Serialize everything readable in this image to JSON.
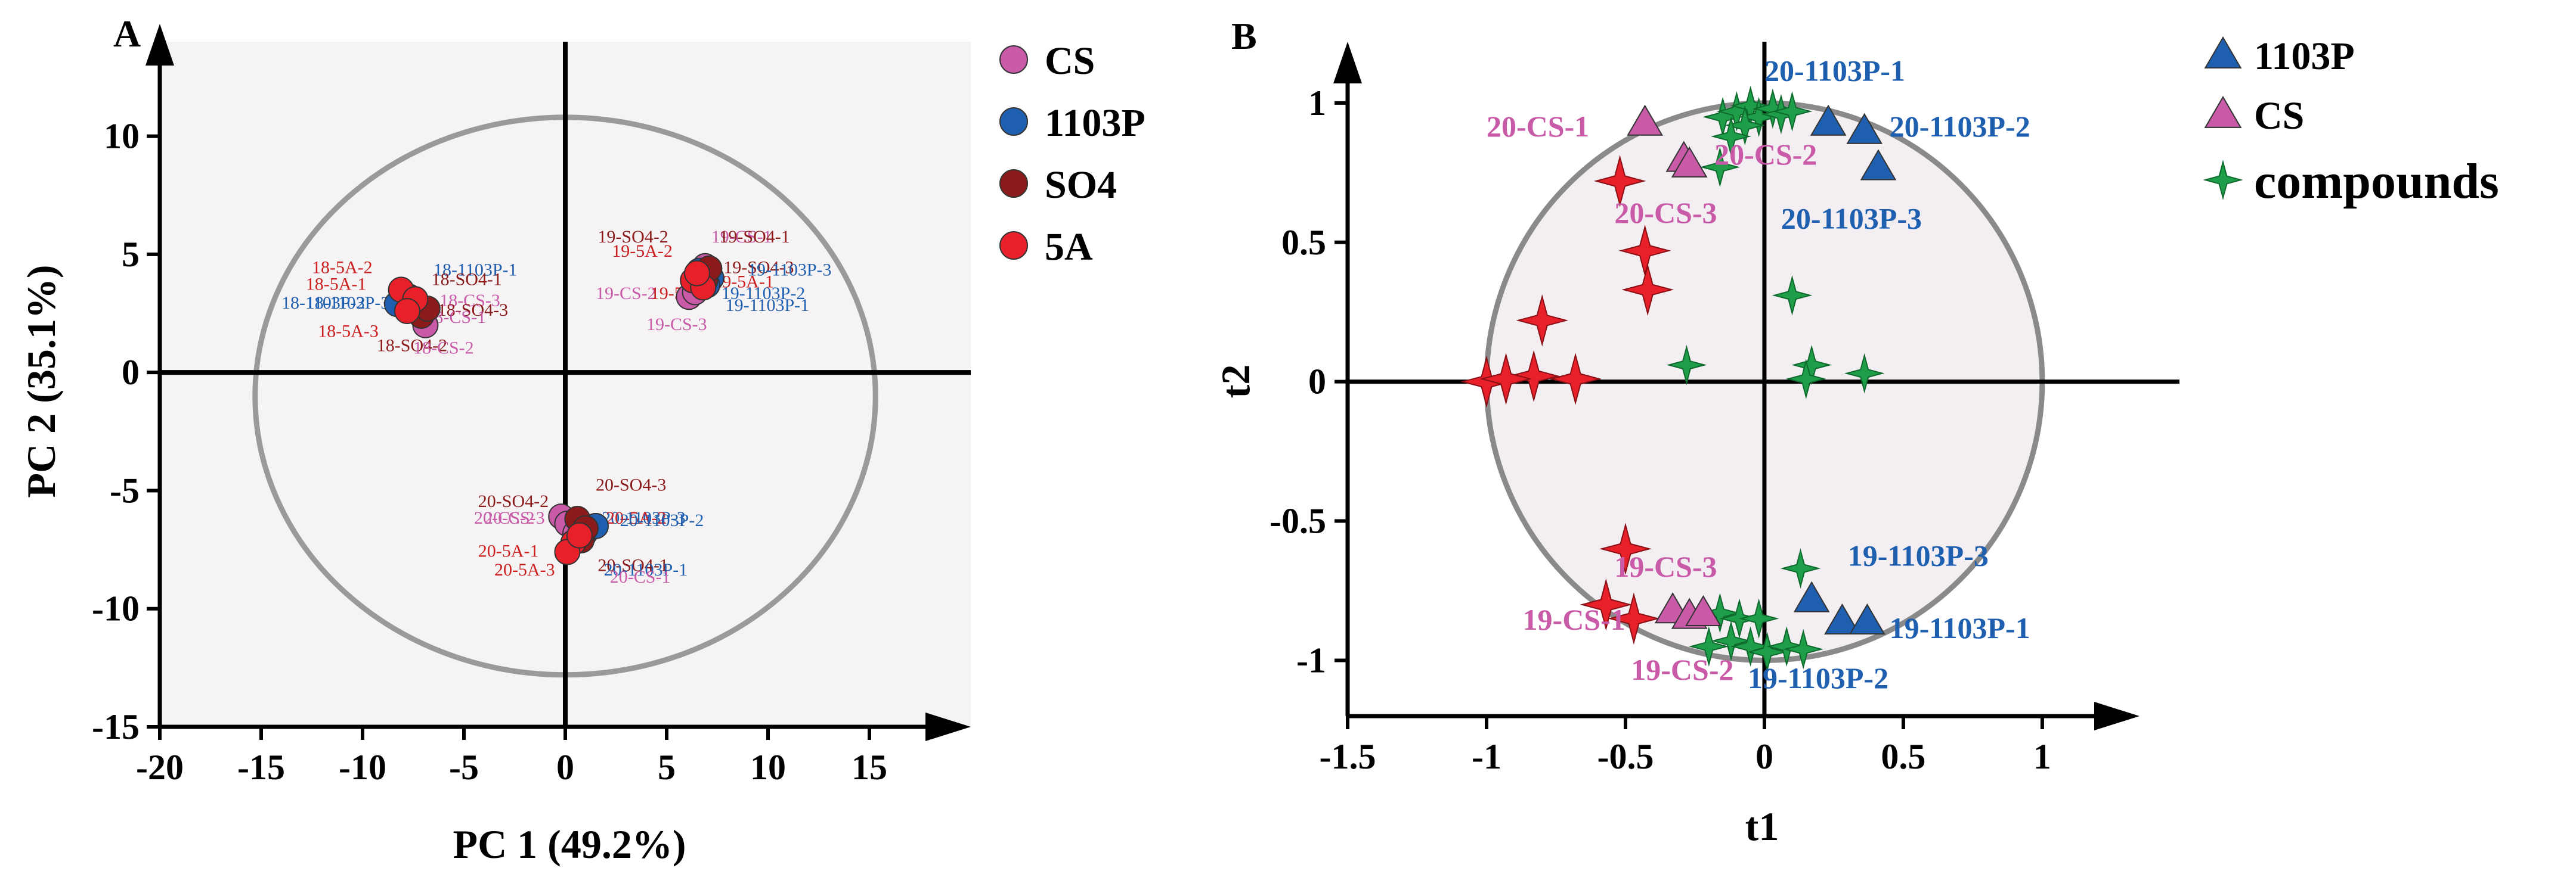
{
  "chart_data": [
    {
      "type": "scatter",
      "panel": "A",
      "xlabel": "PC 1 (49.2%)",
      "ylabel": "PC 2 (35.1%)",
      "xlim": [
        -20,
        20
      ],
      "ylim": [
        -15,
        14
      ],
      "xticks": [
        -20,
        -15,
        -10,
        -5,
        0,
        5,
        10,
        15
      ],
      "yticks": [
        -15,
        -10,
        -5,
        0,
        5,
        10
      ],
      "ellipse": {
        "cx": 0,
        "cy": -1,
        "rx": 15.3,
        "ry": 11.8
      },
      "legend": [
        {
          "name": "CS",
          "color": "#c85aa8"
        },
        {
          "name": "1103P",
          "color": "#1f5fb0"
        },
        {
          "name": "SO4",
          "color": "#8b1a1a"
        },
        {
          "name": "5A",
          "color": "#e8202a"
        }
      ],
      "series": [
        {
          "name": "CS",
          "color": "#c85aa8",
          "points": [
            {
              "x": -7.0,
              "y": 2.6
            },
            {
              "x": -6.9,
              "y": 2.0
            },
            {
              "x": -7.3,
              "y": 2.9
            },
            {
              "x": 6.9,
              "y": 4.5
            },
            {
              "x": 6.1,
              "y": 3.2
            },
            {
              "x": 6.4,
              "y": 3.4
            },
            {
              "x": -0.2,
              "y": -6.1
            },
            {
              "x": 0.1,
              "y": -6.4
            },
            {
              "x": 0.5,
              "y": -6.8
            }
          ]
        },
        {
          "name": "1103P",
          "color": "#1f5fb0",
          "points": [
            {
              "x": -8.3,
              "y": 2.9
            },
            {
              "x": -7.7,
              "y": 3.2
            },
            {
              "x": -7.5,
              "y": 2.8
            },
            {
              "x": 7.2,
              "y": 4.0
            },
            {
              "x": 7.0,
              "y": 3.7
            },
            {
              "x": 6.6,
              "y": 4.3
            },
            {
              "x": 1.2,
              "y": -6.6
            },
            {
              "x": 0.9,
              "y": -6.9
            },
            {
              "x": 1.5,
              "y": -6.5
            }
          ]
        },
        {
          "name": "SO4",
          "color": "#8b1a1a",
          "points": [
            {
              "x": -7.1,
              "y": 2.4
            },
            {
              "x": -6.8,
              "y": 2.7
            },
            {
              "x": -7.6,
              "y": 3.0
            },
            {
              "x": 6.7,
              "y": 4.1
            },
            {
              "x": 6.9,
              "y": 3.9
            },
            {
              "x": 7.1,
              "y": 4.4
            },
            {
              "x": 0.6,
              "y": -6.2
            },
            {
              "x": 0.8,
              "y": -7.1
            },
            {
              "x": 1.0,
              "y": -6.6
            }
          ]
        },
        {
          "name": "5A",
          "color": "#e8202a",
          "points": [
            {
              "x": -8.1,
              "y": 3.5
            },
            {
              "x": -7.4,
              "y": 3.1
            },
            {
              "x": -7.8,
              "y": 2.6
            },
            {
              "x": 6.3,
              "y": 3.9
            },
            {
              "x": 6.8,
              "y": 3.6
            },
            {
              "x": 6.5,
              "y": 4.2
            },
            {
              "x": 0.4,
              "y": -7.2
            },
            {
              "x": 0.1,
              "y": -7.6
            },
            {
              "x": 0.7,
              "y": -6.9
            }
          ]
        }
      ],
      "point_labels": [
        {
          "text": "18-5A-2",
          "x": -12.5,
          "y": 4.2,
          "color": "#cc2020"
        },
        {
          "text": "18-5A-1",
          "x": -12.8,
          "y": 3.5,
          "color": "#cc2020"
        },
        {
          "text": "18-1103P-1",
          "x": -6.5,
          "y": 4.1,
          "color": "#1f5fb0"
        },
        {
          "text": "18-SO4-1",
          "x": -6.6,
          "y": 3.7,
          "color": "#8b1a1a"
        },
        {
          "text": "18-1103P-2",
          "x": -14.0,
          "y": 2.7,
          "color": "#1f5fb0"
        },
        {
          "text": "18-1103P-3",
          "x": -12.8,
          "y": 2.7,
          "color": "#1f5fb0"
        },
        {
          "text": "18-CS-3",
          "x": -6.2,
          "y": 2.8,
          "color": "#c85aa8"
        },
        {
          "text": "18-SO4-3",
          "x": -6.3,
          "y": 2.4,
          "color": "#8b1a1a"
        },
        {
          "text": "18-CS-1",
          "x": -6.9,
          "y": 2.1,
          "color": "#c85aa8"
        },
        {
          "text": "18-5A-3",
          "x": -12.2,
          "y": 1.5,
          "color": "#cc2020"
        },
        {
          "text": "18-SO4-2",
          "x": -9.3,
          "y": 0.9,
          "color": "#8b1a1a"
        },
        {
          "text": "18-CS-2",
          "x": -7.5,
          "y": 0.8,
          "color": "#c85aa8"
        },
        {
          "text": "19-SO4-2",
          "x": 1.6,
          "y": 5.5,
          "color": "#8b1a1a"
        },
        {
          "text": "19-5A-2",
          "x": 2.3,
          "y": 4.9,
          "color": "#cc2020"
        },
        {
          "text": "19-CS-1",
          "x": 7.2,
          "y": 5.5,
          "color": "#c85aa8"
        },
        {
          "text": "19-SO4-1",
          "x": 7.6,
          "y": 5.5,
          "color": "#8b1a1a"
        },
        {
          "text": "19-SO4-3",
          "x": 7.8,
          "y": 4.2,
          "color": "#8b1a1a"
        },
        {
          "text": "19-1103P-3",
          "x": 9.0,
          "y": 4.1,
          "color": "#1f5fb0"
        },
        {
          "text": "19-5A-1",
          "x": 7.3,
          "y": 3.6,
          "color": "#cc2020"
        },
        {
          "text": "19-CS-2",
          "x": 1.5,
          "y": 3.1,
          "color": "#c85aa8"
        },
        {
          "text": "19-5A-3",
          "x": 4.2,
          "y": 3.1,
          "color": "#cc2020"
        },
        {
          "text": "19-1103P-2",
          "x": 7.7,
          "y": 3.1,
          "color": "#1f5fb0"
        },
        {
          "text": "19-1103P-1",
          "x": 7.9,
          "y": 2.6,
          "color": "#1f5fb0"
        },
        {
          "text": "19-CS-3",
          "x": 4.0,
          "y": 1.8,
          "color": "#c85aa8"
        },
        {
          "text": "20-SO4-2",
          "x": -4.3,
          "y": -5.7,
          "color": "#8b1a1a"
        },
        {
          "text": "20-SO4-3",
          "x": 1.5,
          "y": -5.0,
          "color": "#8b1a1a"
        },
        {
          "text": "20-CS-2",
          "x": -4.5,
          "y": -6.4,
          "color": "#c85aa8"
        },
        {
          "text": "20-CS-3",
          "x": -4.0,
          "y": -6.4,
          "color": "#c85aa8"
        },
        {
          "text": "20-1103P-3",
          "x": 1.8,
          "y": -6.4,
          "color": "#1f5fb0"
        },
        {
          "text": "20-5A-2",
          "x": 2.0,
          "y": -6.4,
          "color": "#cc2020"
        },
        {
          "text": "20-1103P-2",
          "x": 2.7,
          "y": -6.5,
          "color": "#1f5fb0"
        },
        {
          "text": "20-5A-1",
          "x": -4.3,
          "y": -7.8,
          "color": "#cc2020"
        },
        {
          "text": "20-SO4-1",
          "x": 1.6,
          "y": -8.4,
          "color": "#8b1a1a"
        },
        {
          "text": "20-1103P-1",
          "x": 1.9,
          "y": -8.6,
          "color": "#1f5fb0"
        },
        {
          "text": "20-5A-3",
          "x": -3.5,
          "y": -8.6,
          "color": "#cc2020"
        },
        {
          "text": "20-CS-1",
          "x": 2.2,
          "y": -8.9,
          "color": "#c85aa8"
        }
      ]
    },
    {
      "type": "scatter",
      "panel": "B",
      "xlabel": "t1",
      "ylabel": "t2",
      "xlim": [
        -1.5,
        1.35
      ],
      "ylim": [
        -1.2,
        1.22
      ],
      "xticks": [
        -1.5,
        -1,
        -0.5,
        0,
        0.5,
        1
      ],
      "yticks": [
        -1,
        -0.5,
        0,
        0.5,
        1
      ],
      "ellipse": {
        "cx": 0,
        "cy": 0,
        "rx": 1.0,
        "ry": 1.0
      },
      "legend": [
        {
          "name": "1103P",
          "color": "#1f5fb0",
          "marker": "triangle"
        },
        {
          "name": "CS",
          "color": "#c85aa8",
          "marker": "triangle"
        },
        {
          "name": "compounds",
          "color": "#1f9e4a",
          "marker": "star"
        }
      ],
      "samples": [
        {
          "name": "1103P",
          "color": "#1f5fb0",
          "points": [
            {
              "x": 0.23,
              "y": 0.93
            },
            {
              "x": 0.36,
              "y": 0.9
            },
            {
              "x": 0.41,
              "y": 0.77
            },
            {
              "x": 0.17,
              "y": -0.78
            },
            {
              "x": 0.28,
              "y": -0.86
            },
            {
              "x": 0.37,
              "y": -0.86
            }
          ]
        },
        {
          "name": "CS",
          "color": "#c85aa8",
          "points": [
            {
              "x": -0.43,
              "y": 0.93
            },
            {
              "x": -0.29,
              "y": 0.8
            },
            {
              "x": -0.27,
              "y": 0.78
            },
            {
              "x": -0.33,
              "y": -0.82
            },
            {
              "x": -0.27,
              "y": -0.84
            },
            {
              "x": -0.22,
              "y": -0.83
            }
          ]
        }
      ],
      "compounds_green": [
        {
          "x": -0.15,
          "y": 0.95
        },
        {
          "x": -0.1,
          "y": 0.97
        },
        {
          "x": -0.05,
          "y": 0.99
        },
        {
          "x": -0.02,
          "y": 0.95
        },
        {
          "x": 0.03,
          "y": 0.98
        },
        {
          "x": 0.06,
          "y": 0.96
        },
        {
          "x": -0.07,
          "y": 0.92
        },
        {
          "x": 0.1,
          "y": 0.97
        },
        {
          "x": -0.12,
          "y": 0.88
        },
        {
          "x": -0.16,
          "y": 0.77
        },
        {
          "x": 0.1,
          "y": 0.31
        },
        {
          "x": -0.28,
          "y": 0.06
        },
        {
          "x": 0.17,
          "y": 0.06
        },
        {
          "x": 0.15,
          "y": 0.01
        },
        {
          "x": 0.36,
          "y": 0.03
        },
        {
          "x": 0.13,
          "y": -0.67
        },
        {
          "x": -0.16,
          "y": -0.83
        },
        {
          "x": -0.09,
          "y": -0.85
        },
        {
          "x": -0.02,
          "y": -0.85
        },
        {
          "x": -0.12,
          "y": -0.93
        },
        {
          "x": -0.05,
          "y": -0.95
        },
        {
          "x": 0.01,
          "y": -0.97
        },
        {
          "x": 0.08,
          "y": -0.95
        },
        {
          "x": 0.14,
          "y": -0.96
        },
        {
          "x": -0.2,
          "y": -0.95
        }
      ],
      "compounds_red": [
        {
          "x": -0.52,
          "y": 0.72
        },
        {
          "x": -0.43,
          "y": 0.47
        },
        {
          "x": -0.42,
          "y": 0.33
        },
        {
          "x": -0.8,
          "y": 0.22
        },
        {
          "x": -0.83,
          "y": 0.02
        },
        {
          "x": -1.0,
          "y": 0.0
        },
        {
          "x": -0.93,
          "y": 0.01
        },
        {
          "x": -0.68,
          "y": 0.01
        },
        {
          "x": -0.5,
          "y": -0.6
        },
        {
          "x": -0.57,
          "y": -0.8
        },
        {
          "x": -0.47,
          "y": -0.85
        }
      ],
      "point_labels": [
        {
          "text": "20-1103P-1",
          "x": 0.0,
          "y": 1.08,
          "color": "#1f5fb0"
        },
        {
          "text": "20-1103P-2",
          "x": 0.45,
          "y": 0.88,
          "color": "#1f5fb0"
        },
        {
          "text": "20-1103P-3",
          "x": 0.06,
          "y": 0.55,
          "color": "#1f5fb0"
        },
        {
          "text": "20-CS-1",
          "x": -1.0,
          "y": 0.88,
          "color": "#c85aa8"
        },
        {
          "text": "20-CS-2",
          "x": -0.18,
          "y": 0.78,
          "color": "#c85aa8"
        },
        {
          "text": "20-CS-3",
          "x": -0.54,
          "y": 0.57,
          "color": "#c85aa8"
        },
        {
          "text": "19-1103P-3",
          "x": 0.3,
          "y": -0.66,
          "color": "#1f5fb0"
        },
        {
          "text": "19-1103P-1",
          "x": 0.45,
          "y": -0.92,
          "color": "#1f5fb0"
        },
        {
          "text": "19-1103P-2",
          "x": -0.06,
          "y": -1.1,
          "color": "#1f5fb0"
        },
        {
          "text": "19-CS-3",
          "x": -0.54,
          "y": -0.7,
          "color": "#c85aa8"
        },
        {
          "text": "19-CS-1",
          "x": -0.87,
          "y": -0.89,
          "color": "#c85aa8"
        },
        {
          "text": "19-CS-2",
          "x": -0.48,
          "y": -1.07,
          "color": "#c85aa8"
        }
      ]
    }
  ]
}
